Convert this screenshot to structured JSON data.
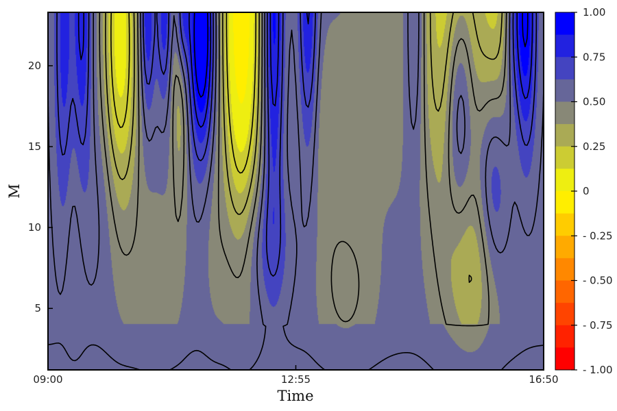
{
  "chart_data": {
    "type": "heatmap",
    "subtype": "filled-contour",
    "xlabel": "Time",
    "ylabel": "M",
    "x_ticks": [
      "09:00",
      "12:55",
      "16:50"
    ],
    "y_ticks": [
      5,
      10,
      15,
      20
    ],
    "ylim": [
      1.2,
      23.3
    ],
    "colorbar": {
      "tick_labels": [
        "1.00",
        "0.75",
        "0.50",
        "0.25",
        "0",
        "- 0.25",
        "- 0.50",
        "- 0.75",
        "- 1.00"
      ],
      "tick_values": [
        1.0,
        0.75,
        0.5,
        0.25,
        0,
        -0.25,
        -0.5,
        -0.75,
        -1.0
      ],
      "range": [
        -1.0,
        1.0
      ],
      "bin_colors_top_to_bottom": [
        "#0000ff",
        "#2222e0",
        "#4444c0",
        "#666699",
        "#888877",
        "#aaaa55",
        "#cccc33",
        "#eeee11",
        "#ffee00",
        "#ffcc00",
        "#ffaa00",
        "#ff8800",
        "#ff6600",
        "#ff4400",
        "#ff2200",
        "#ff0000"
      ]
    },
    "contour_levels": [
      0.4375,
      0.5625,
      0.6875,
      0.8125,
      0.9375,
      0.3125,
      0.1875
    ],
    "modes": [
      {
        "t": 0.035,
        "m": 22,
        "amp": 0.4,
        "wt": 0.02,
        "wm": 11
      },
      {
        "t": 0.065,
        "m": 23,
        "amp": 0.45,
        "wt": 0.02,
        "wm": 10
      },
      {
        "t": 0.145,
        "m": 23,
        "amp": -0.42,
        "wt": 0.035,
        "wm": 11
      },
      {
        "t": 0.15,
        "m": 15,
        "amp": -0.12,
        "wt": 0.04,
        "wm": 9
      },
      {
        "t": 0.22,
        "m": 7,
        "amp": -0.1,
        "wt": 0.05,
        "wm": 6
      },
      {
        "t": 0.31,
        "m": 22,
        "amp": 0.55,
        "wt": 0.025,
        "wm": 7
      },
      {
        "t": 0.27,
        "m": 23,
        "amp": 0.35,
        "wt": 0.015,
        "wm": 4
      },
      {
        "t": 0.265,
        "m": 20,
        "amp": -0.25,
        "wt": 0.018,
        "wm": 9
      },
      {
        "t": 0.335,
        "m": 9,
        "amp": -0.06,
        "wt": 0.025,
        "wm": 6
      },
      {
        "t": 0.2,
        "m": 23,
        "amp": 0.3,
        "wt": 0.015,
        "wm": 6
      },
      {
        "t": 0.235,
        "m": 23,
        "amp": 0.25,
        "wt": 0.015,
        "wm": 5
      },
      {
        "t": 0.39,
        "m": 23,
        "amp": -0.65,
        "wt": 0.04,
        "wm": 13
      },
      {
        "t": 0.44,
        "m": 9,
        "amp": 0.12,
        "wt": 0.05,
        "wm": 4
      },
      {
        "t": 0.455,
        "m": 23,
        "amp": 0.38,
        "wt": 0.02,
        "wm": 12
      },
      {
        "t": 0.525,
        "m": 23,
        "amp": 0.3,
        "wt": 0.02,
        "wm": 10
      },
      {
        "t": 0.6,
        "m": 6,
        "amp": -0.12,
        "wt": 0.06,
        "wm": 5
      },
      {
        "t": 0.82,
        "m": 23,
        "amp": -0.45,
        "wt": 0.06,
        "wm": 13
      },
      {
        "t": 0.86,
        "m": 7,
        "amp": -0.22,
        "wt": 0.06,
        "wm": 6
      },
      {
        "t": 0.91,
        "m": 23,
        "amp": -0.3,
        "wt": 0.04,
        "wm": 11
      },
      {
        "t": 0.68,
        "m": 23,
        "amp": -0.1,
        "wt": 0.08,
        "wm": 13
      },
      {
        "t": 0.55,
        "m": 16,
        "amp": -0.1,
        "wt": 0.06,
        "wm": 7
      },
      {
        "t": 0.83,
        "m": 18,
        "amp": 0.4,
        "wt": 0.03,
        "wm": 8
      },
      {
        "t": 0.9,
        "m": 13,
        "amp": 0.3,
        "wt": 0.035,
        "wm": 7
      },
      {
        "t": 0.94,
        "m": 23,
        "amp": 0.25,
        "wt": 0.02,
        "wm": 6
      },
      {
        "t": 0.05,
        "m": 23,
        "amp": -0.3,
        "wt": 0.025,
        "wm": 14
      },
      {
        "t": 0.965,
        "m": 23,
        "amp": 0.4,
        "wt": 0.02,
        "wm": 8
      },
      {
        "t": 0.74,
        "m": 23,
        "amp": 0.2,
        "wt": 0.02,
        "wm": 9
      },
      {
        "t": 0.125,
        "m": 12,
        "amp": 0.08,
        "wt": 0.05,
        "wm": 6
      }
    ]
  }
}
